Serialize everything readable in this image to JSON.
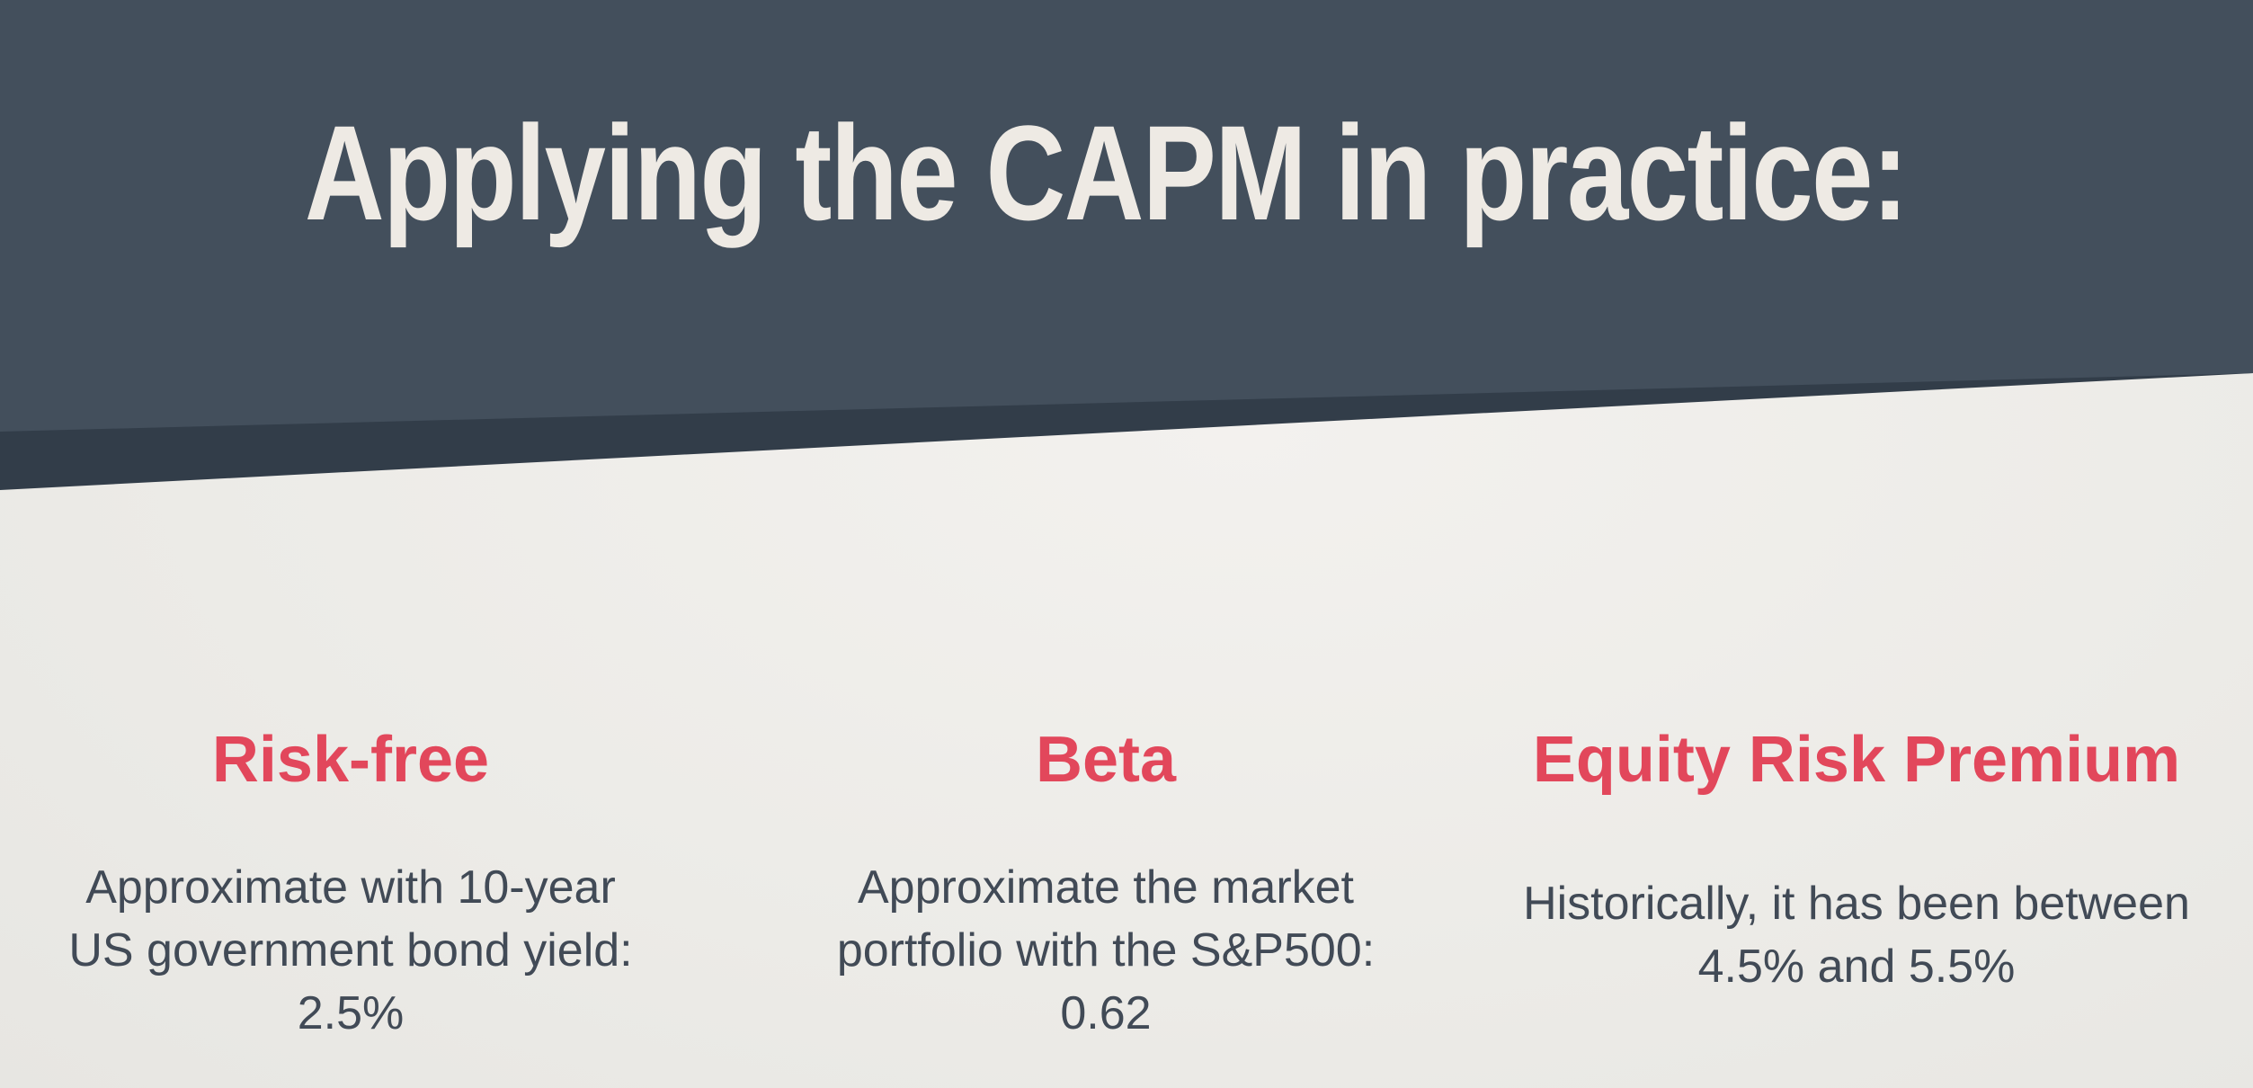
{
  "slide": {
    "title": "Applying the CAPM in practice:",
    "colors": {
      "header": "#434f5c",
      "header_shadow": "#323d49",
      "accent": "#e2475b",
      "body_text": "#414a56",
      "background": "#eeece8"
    }
  },
  "columns": [
    {
      "heading": "Risk-free",
      "body": "Approximate with 10-year US government bond yield: 2.5%"
    },
    {
      "heading": "Beta",
      "body": "Approximate the market portfolio with the S&P500: 0.62"
    },
    {
      "heading": "Equity Risk Premium",
      "body": "Historically, it has been between 4.5% and 5.5%"
    }
  ]
}
